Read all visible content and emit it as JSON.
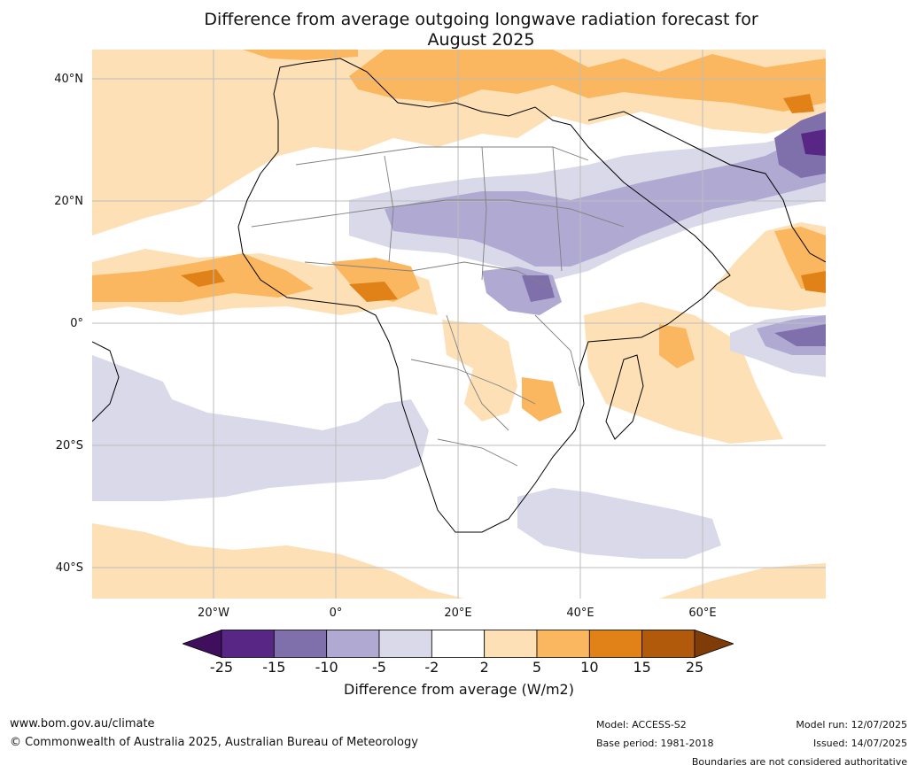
{
  "title": {
    "line1": "Difference from average outgoing longwave radiation forecast for",
    "line2": "August 2025"
  },
  "map": {
    "region": "Africa",
    "lat_labels": [
      "40°N",
      "20°N",
      "0°",
      "20°S",
      "40°S"
    ],
    "lon_labels": [
      "20°W",
      "0°",
      "20°E",
      "40°E",
      "60°E"
    ]
  },
  "legend": {
    "ticks": [
      "-25",
      "-15",
      "-10",
      "-5",
      "-2",
      "2",
      "5",
      "10",
      "15",
      "25"
    ],
    "colors": [
      "#3f0f5e",
      "#582785",
      "#7f6fab",
      "#b0aad3",
      "#d9d9ea",
      "#ffffff",
      "#fde0b5",
      "#fbb660",
      "#e08218",
      "#b25a0b",
      "#7f3b08"
    ],
    "label": "Difference from average (W/m2)"
  },
  "footer": {
    "url": "www.bom.gov.au/climate",
    "copyright": "© Commonwealth of Australia 2025, Australian Bureau of Meteorology",
    "model": "Model: ACCESS-S2",
    "base_period": "Base period: 1981-2018",
    "model_run": "Model run: 12/07/2025",
    "issued": "Issued: 14/07/2025",
    "disclaimer": "Boundaries are not considered authoritative"
  }
}
